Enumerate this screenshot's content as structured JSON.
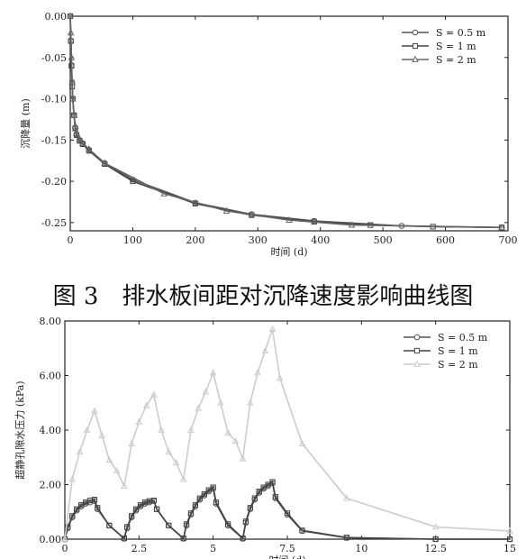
{
  "caption": "图 3　排水板间距对沉降速度影响曲线图",
  "chart_data": [
    {
      "type": "line",
      "xlabel": "时间 (d)",
      "ylabel": "沉降量 (m)",
      "xlim": [
        0,
        700
      ],
      "ylim": [
        -0.26,
        0.0
      ],
      "xticks": [
        "0",
        "100",
        "200",
        "300",
        "400",
        "500",
        "600",
        "700"
      ],
      "yticks": [
        "0.00",
        "-0.05",
        "-0.10",
        "-0.15",
        "-0.20",
        "-0.25"
      ],
      "legend_position": "top-right",
      "series": [
        {
          "name": "S = 0.5 m",
          "marker": "circle",
          "color": "#555555",
          "x": [
            0,
            1,
            2,
            3,
            4,
            6,
            8,
            10,
            15,
            20,
            30,
            55,
            100,
            200,
            290,
            390,
            530,
            690
          ],
          "y": [
            0,
            -0.03,
            -0.06,
            -0.08,
            -0.1,
            -0.12,
            -0.135,
            -0.143,
            -0.15,
            -0.154,
            -0.162,
            -0.178,
            -0.198,
            -0.226,
            -0.24,
            -0.248,
            -0.254,
            -0.256
          ]
        },
        {
          "name": "S = 1 m",
          "marker": "square",
          "color": "#444444",
          "x": [
            0,
            1,
            2,
            3,
            4,
            6,
            8,
            10,
            15,
            20,
            30,
            55,
            100,
            200,
            290,
            390,
            480,
            580,
            690
          ],
          "y": [
            0,
            -0.03,
            -0.06,
            -0.085,
            -0.1,
            -0.12,
            -0.136,
            -0.144,
            -0.151,
            -0.155,
            -0.163,
            -0.179,
            -0.2,
            -0.227,
            -0.241,
            -0.249,
            -0.253,
            -0.255,
            -0.256
          ]
        },
        {
          "name": "S = 2 m",
          "marker": "triangle",
          "color": "#666666",
          "x": [
            0,
            1,
            2,
            3,
            4,
            6,
            8,
            10,
            15,
            20,
            30,
            55,
            150,
            250,
            350,
            450,
            690
          ],
          "y": [
            0,
            -0.02,
            -0.05,
            -0.08,
            -0.1,
            -0.12,
            -0.133,
            -0.142,
            -0.149,
            -0.154,
            -0.161,
            -0.178,
            -0.215,
            -0.236,
            -0.247,
            -0.253,
            -0.256
          ]
        }
      ]
    },
    {
      "type": "line",
      "xlabel": "时间 (d)",
      "ylabel": "超静孔隙水压力 (kPa)",
      "xlim": [
        0,
        15
      ],
      "ylim": [
        0,
        8.0
      ],
      "xticks": [
        "0",
        "2.5",
        "5",
        "7.5",
        "10",
        "12.5",
        "15"
      ],
      "yticks": [
        "0.00",
        "2.00",
        "4.00",
        "6.00",
        "8.00"
      ],
      "legend_position": "top-right",
      "series": [
        {
          "name": "S = 0.5 m",
          "marker": "circle",
          "color": "#555555",
          "x": [
            0,
            0.1,
            0.25,
            0.4,
            0.55,
            0.7,
            0.85,
            1.0,
            1.1,
            1.5,
            2.0,
            2.1,
            2.25,
            2.4,
            2.55,
            2.7,
            2.85,
            3.0,
            3.1,
            3.5,
            4.0,
            4.1,
            4.25,
            4.4,
            4.55,
            4.7,
            4.85,
            5.0,
            5.1,
            5.5,
            6.0,
            6.1,
            6.25,
            6.4,
            6.55,
            6.7,
            6.85,
            7.0,
            7.1,
            7.5,
            8.0,
            9.5,
            12.5,
            15.0
          ],
          "y": [
            0,
            0.4,
            0.8,
            1.05,
            1.2,
            1.3,
            1.35,
            1.4,
            1.1,
            0.5,
            0.02,
            0.4,
            0.8,
            1.05,
            1.2,
            1.3,
            1.35,
            1.4,
            1.1,
            0.5,
            0.02,
            0.5,
            0.9,
            1.2,
            1.45,
            1.6,
            1.75,
            1.85,
            1.3,
            0.5,
            0.02,
            0.6,
            1.1,
            1.45,
            1.7,
            1.85,
            1.95,
            2.05,
            1.5,
            0.9,
            0.3,
            0.05,
            0.0,
            0.0
          ]
        },
        {
          "name": "S = 1 m",
          "marker": "square",
          "color": "#444444",
          "x": [
            0,
            0.1,
            0.25,
            0.4,
            0.55,
            0.7,
            0.85,
            1.0,
            1.1,
            1.5,
            2.0,
            2.1,
            2.25,
            2.4,
            2.55,
            2.7,
            2.85,
            3.0,
            3.1,
            3.5,
            4.0,
            4.1,
            4.25,
            4.4,
            4.55,
            4.7,
            4.85,
            5.0,
            5.1,
            5.5,
            6.0,
            6.1,
            6.25,
            6.4,
            6.55,
            6.7,
            6.85,
            7.0,
            7.1,
            7.5,
            8.0,
            9.5,
            12.5,
            15.0
          ],
          "y": [
            0,
            0.45,
            0.85,
            1.1,
            1.25,
            1.35,
            1.42,
            1.45,
            1.15,
            0.5,
            0.03,
            0.45,
            0.85,
            1.1,
            1.25,
            1.35,
            1.4,
            1.42,
            1.1,
            0.5,
            0.03,
            0.55,
            0.95,
            1.25,
            1.5,
            1.65,
            1.8,
            1.9,
            1.35,
            0.55,
            0.03,
            0.65,
            1.15,
            1.5,
            1.75,
            1.9,
            2.0,
            2.1,
            1.55,
            0.95,
            0.32,
            0.06,
            0.0,
            0.0
          ]
        },
        {
          "name": "S = 2 m",
          "marker": "triangle",
          "color": "#cccccc",
          "x": [
            0,
            0.25,
            0.5,
            0.75,
            1.0,
            1.25,
            1.5,
            1.75,
            2.0,
            2.25,
            2.5,
            2.75,
            3.0,
            3.25,
            3.5,
            3.75,
            4.0,
            4.25,
            4.5,
            4.75,
            5.0,
            5.25,
            5.5,
            5.75,
            6.0,
            6.25,
            6.5,
            6.75,
            7.0,
            7.25,
            8.0,
            9.5,
            12.5,
            15.0
          ],
          "y": [
            0,
            2.2,
            3.2,
            4.0,
            4.7,
            3.8,
            2.9,
            2.5,
            1.95,
            3.5,
            4.3,
            4.9,
            5.3,
            4.0,
            3.2,
            2.8,
            2.2,
            4.0,
            4.8,
            5.4,
            6.1,
            5.0,
            3.9,
            3.6,
            2.95,
            5.0,
            6.1,
            6.9,
            7.7,
            5.9,
            3.5,
            1.5,
            0.45,
            0.3
          ]
        }
      ]
    }
  ]
}
